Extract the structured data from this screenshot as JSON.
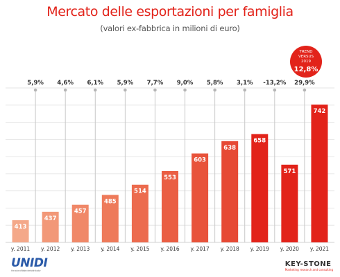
{
  "header": {
    "title": "Mercato delle esportazioni per famiglia",
    "subtitle": "(valori ex-fabbrica in milioni di euro)"
  },
  "trend_badge": {
    "line1": "TREND",
    "line2": "VERSUS",
    "line3": "2019",
    "value": "12,8%"
  },
  "logos": {
    "left": "UNIDI",
    "left_sub": "the voice of italian dental industry",
    "right": "KEY-STONE",
    "right_sub": "Marketing research and consulting"
  },
  "colors": {
    "title": "#e2231a",
    "badge": "#e2231a",
    "bars": [
      "#f4a889",
      "#f29878",
      "#f08868",
      "#ee7a5a",
      "#ec6b4e",
      "#ea5e43",
      "#e8533b",
      "#e64934",
      "#e2231a",
      "#e2231a",
      "#e2231a"
    ]
  },
  "chart_data": {
    "type": "bar",
    "categories": [
      "y. 2011",
      "y. 2012",
      "y. 2013",
      "y. 2014",
      "y. 2015",
      "y. 2016",
      "y. 2017",
      "y. 2018",
      "y. 2019",
      "y. 2020",
      "y. 2021"
    ],
    "values": [
      413,
      437,
      457,
      485,
      514,
      553,
      603,
      638,
      658,
      571,
      742
    ],
    "growth_labels": [
      "5,9%",
      "4,6%",
      "6,1%",
      "5,9%",
      "7,7%",
      "9,0%",
      "5,8%",
      "3,1%",
      "-13,2%",
      "29,9%"
    ],
    "title": "Mercato delle esportazioni per famiglia",
    "subtitle": "(valori ex-fabbrica in milioni di euro)",
    "xlabel": "",
    "ylabel": "",
    "grid": true
  }
}
